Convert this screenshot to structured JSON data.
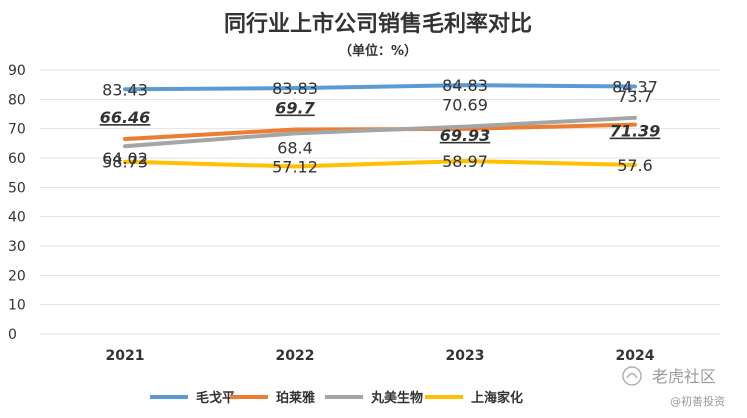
{
  "chart_data": {
    "type": "line",
    "title": "同行业上市公司销售毛利率对比",
    "subtitle": "（单位：%）",
    "categories": [
      "2021",
      "2022",
      "2023",
      "2024"
    ],
    "ylim": [
      0,
      90
    ],
    "yticks": [
      0,
      10,
      20,
      30,
      40,
      50,
      60,
      70,
      80,
      90
    ],
    "grid": true,
    "legend_position": "bottom",
    "series": [
      {
        "name": "毛戈平",
        "color": "#5b9bd5",
        "values": [
          83.43,
          83.83,
          84.83,
          84.37
        ],
        "labels": [
          "83.43",
          "83.83",
          "84.83",
          "84.37"
        ]
      },
      {
        "name": "珀莱雅",
        "color": "#ed7d31",
        "values": [
          66.46,
          69.7,
          69.93,
          71.39
        ],
        "labels": [
          "66.46",
          "69.7",
          "69.93",
          "71.39"
        ],
        "emphasized": true
      },
      {
        "name": "丸美生物",
        "color": "#a5a5a5",
        "values": [
          64.02,
          68.4,
          70.69,
          73.7
        ],
        "labels": [
          "64.02",
          "68.4",
          "70.69",
          "73.7"
        ]
      },
      {
        "name": "上海家化",
        "color": "#ffc000",
        "values": [
          58.73,
          57.12,
          58.97,
          57.6
        ],
        "labels": [
          "58.73",
          "57.12",
          "58.97",
          "57.6"
        ]
      }
    ]
  },
  "watermark": {
    "main": "老虎社区",
    "sub": "@初善投资",
    "icon": "tiger-logo-icon"
  }
}
